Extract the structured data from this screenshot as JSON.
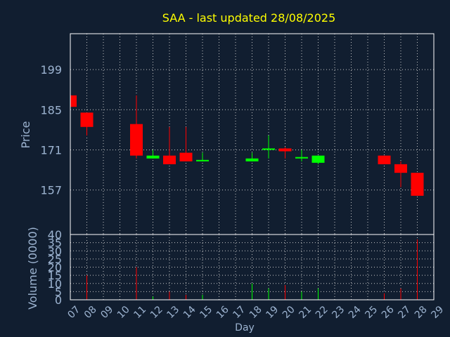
{
  "colors": {
    "background": "#111e30",
    "plot_border": "#ffffff",
    "grid": "#c8c8c8",
    "title": "#ffff00",
    "axis_text": "#9db4d1",
    "up": "#00ff00",
    "down": "#ff0000"
  },
  "chart_data": {
    "type": "candlestick",
    "title": "SAA - last updated 28/08/2025",
    "xlabel": "Day",
    "price": {
      "ylabel": "Price",
      "ylim": [
        141.5,
        211.5
      ],
      "yticks": [
        157,
        171,
        185,
        199
      ],
      "grid": true
    },
    "volume": {
      "ylabel": "Volume (0000)",
      "ylim": [
        0,
        40
      ],
      "yticks": [
        0,
        5,
        10,
        15,
        20,
        25,
        30,
        35,
        40
      ],
      "grid": true
    },
    "x_tick_labels": [
      "07",
      "08",
      "09",
      "10",
      "11",
      "12",
      "13",
      "14",
      "15",
      "16",
      "17",
      "18",
      "19",
      "20",
      "21",
      "22",
      "23",
      "24",
      "25",
      "26",
      "27",
      "28",
      "29"
    ],
    "candles": [
      {
        "day": "07",
        "open": 190,
        "close": 186,
        "high": 190,
        "low": 186,
        "volume": 0
      },
      {
        "day": "08",
        "open": 184,
        "close": 179,
        "high": 184,
        "low": 176,
        "volume": 15
      },
      {
        "day": "11",
        "open": 180,
        "close": 169,
        "high": 190,
        "low": 168,
        "volume": 20
      },
      {
        "day": "12",
        "open": 168,
        "close": 169,
        "high": 171,
        "low": 168,
        "volume": 2
      },
      {
        "day": "13",
        "open": 169,
        "close": 166,
        "high": 179,
        "low": 166,
        "volume": 5
      },
      {
        "day": "14",
        "open": 170,
        "close": 167,
        "high": 179,
        "low": 167,
        "volume": 3
      },
      {
        "day": "15",
        "open": 167,
        "close": 167.5,
        "high": 170,
        "low": 167,
        "volume": 3
      },
      {
        "day": "18",
        "open": 167,
        "close": 168,
        "high": 170,
        "low": 167,
        "volume": 10
      },
      {
        "day": "19",
        "open": 171,
        "close": 171.5,
        "high": 176,
        "low": 168,
        "volume": 7
      },
      {
        "day": "20",
        "open": 171.5,
        "close": 170.5,
        "high": 172,
        "low": 168,
        "volume": 9
      },
      {
        "day": "21",
        "open": 168,
        "close": 168.5,
        "high": 171,
        "low": 167,
        "volume": 5
      },
      {
        "day": "22",
        "open": 166.5,
        "close": 169,
        "high": 169,
        "low": 166,
        "volume": 7
      },
      {
        "day": "26",
        "open": 169,
        "close": 166,
        "high": 169,
        "low": 166,
        "volume": 4
      },
      {
        "day": "27",
        "open": 166,
        "close": 163,
        "high": 167,
        "low": 158,
        "volume": 7
      },
      {
        "day": "28",
        "open": 163,
        "close": 155,
        "high": 163,
        "low": 155,
        "volume": 37
      }
    ]
  }
}
